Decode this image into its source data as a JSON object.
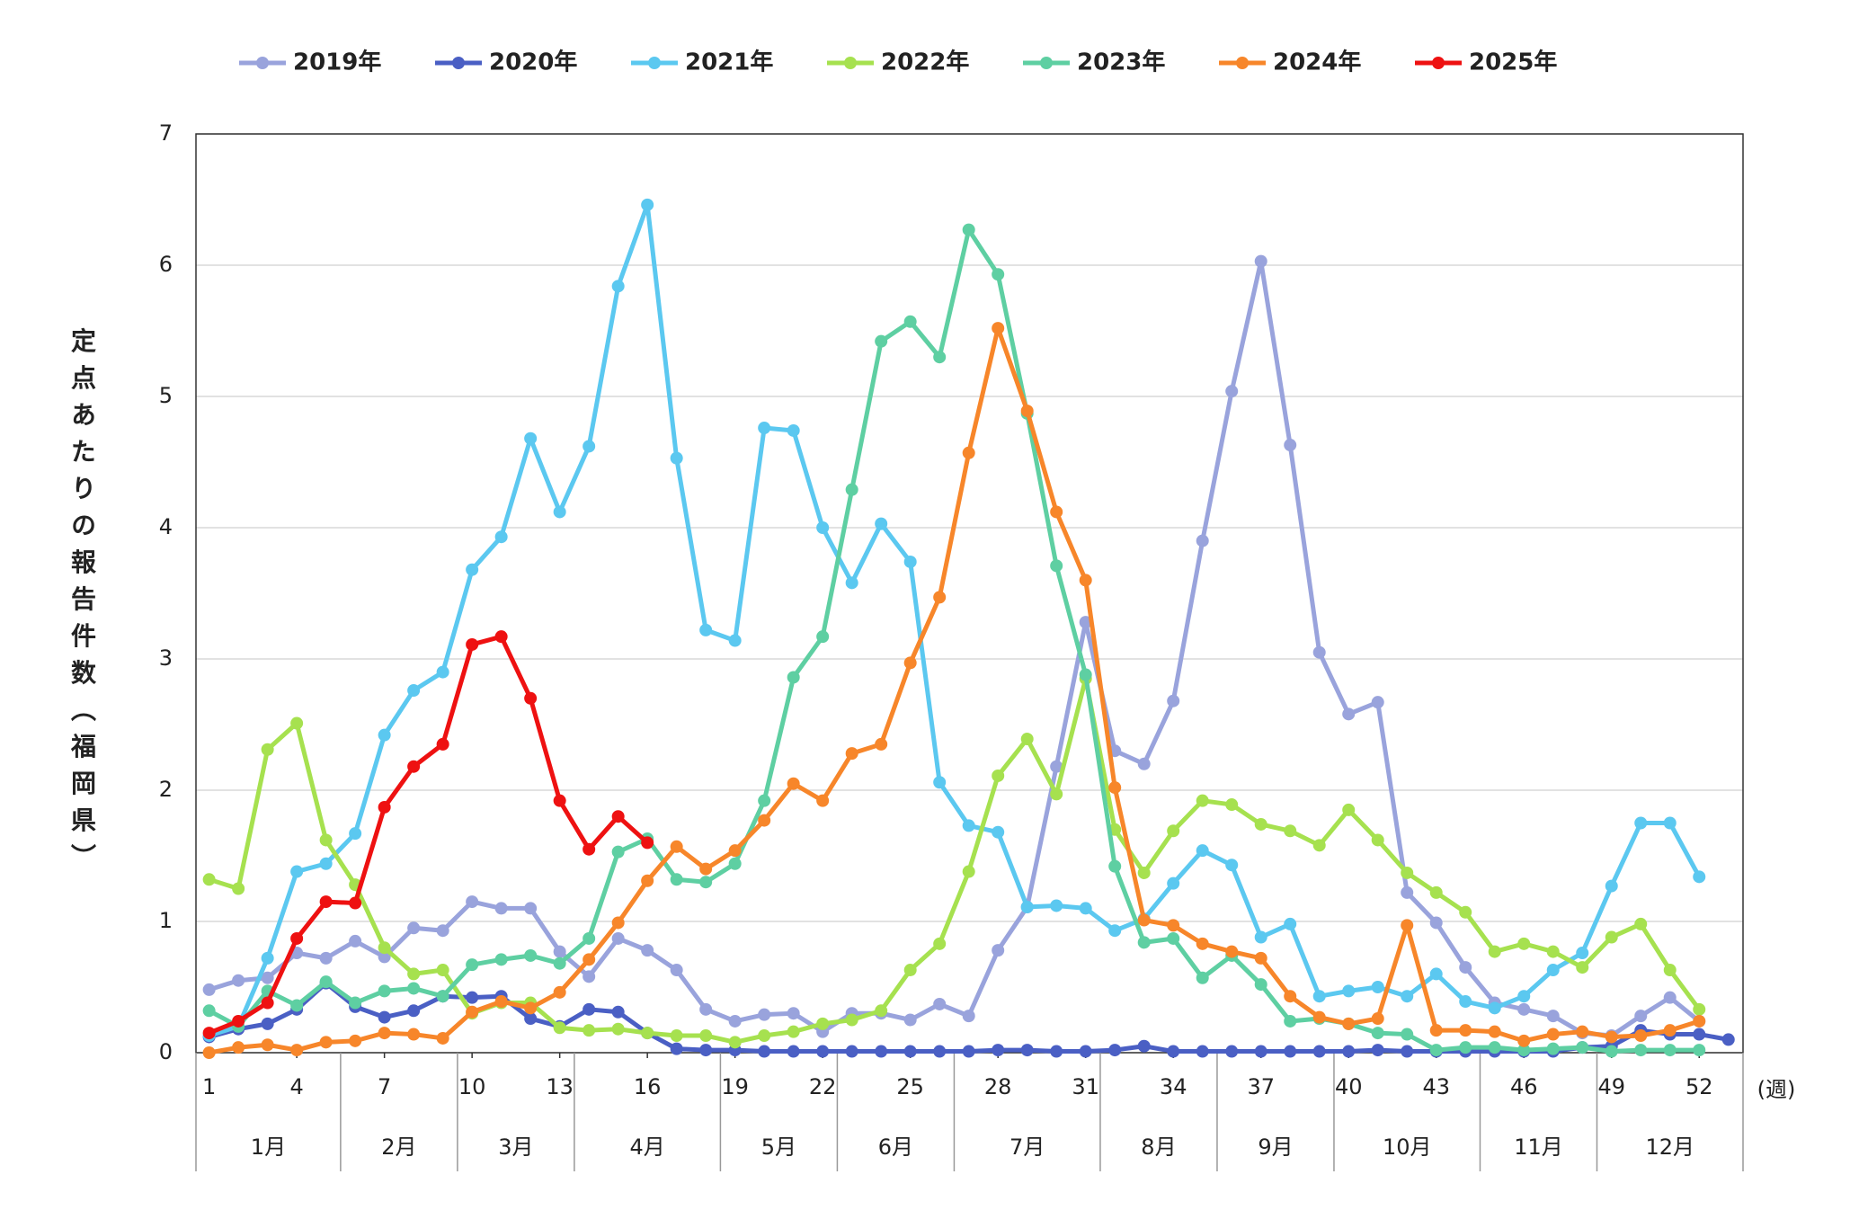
{
  "chart_data": {
    "type": "line",
    "y_label": "定点あたりの報告件数（福岡県）",
    "x_label": "(週)",
    "x": [
      1,
      2,
      3,
      4,
      5,
      6,
      7,
      8,
      9,
      10,
      11,
      12,
      13,
      14,
      15,
      16,
      17,
      18,
      19,
      20,
      21,
      22,
      23,
      24,
      25,
      26,
      27,
      28,
      29,
      30,
      31,
      32,
      33,
      34,
      35,
      36,
      37,
      38,
      39,
      40,
      41,
      42,
      43,
      44,
      45,
      46,
      47,
      48,
      49,
      50,
      51,
      52,
      53
    ],
    "xlim": [
      0.55,
      53.5
    ],
    "xticks": [
      1,
      4,
      7,
      10,
      13,
      16,
      19,
      22,
      25,
      28,
      31,
      34,
      37,
      40,
      43,
      46,
      49,
      52
    ],
    "months": [
      "1月",
      "2月",
      "3月",
      "4月",
      "5月",
      "6月",
      "7月",
      "8月",
      "9月",
      "10月",
      "11月",
      "12月"
    ],
    "ylim": [
      0,
      7
    ],
    "yticks": [
      0,
      1,
      2,
      3,
      4,
      5,
      6,
      7
    ],
    "grid": true,
    "legend": "top",
    "series": [
      {
        "name": "2019年",
        "color": "#99a3dc",
        "values": [
          0.48,
          0.55,
          0.57,
          0.76,
          0.72,
          0.85,
          0.73,
          0.95,
          0.93,
          1.15,
          1.1,
          1.1,
          0.77,
          0.58,
          0.87,
          0.78,
          0.63,
          0.33,
          0.24,
          0.29,
          0.3,
          0.16,
          0.3,
          0.3,
          0.25,
          0.37,
          0.28,
          0.78,
          1.11,
          2.18,
          3.28,
          2.3,
          2.2,
          2.68,
          3.9,
          5.04,
          6.03,
          4.63,
          3.05,
          2.58,
          2.67,
          1.22,
          0.99,
          0.65,
          0.38,
          0.33,
          0.28,
          0.15,
          0.13,
          0.28,
          0.42,
          0.24,
          null
        ]
      },
      {
        "name": "2020年",
        "color": "#4a5fc4",
        "values": [
          0.12,
          0.18,
          0.22,
          0.33,
          0.53,
          0.35,
          0.27,
          0.32,
          0.43,
          0.42,
          0.43,
          0.26,
          0.2,
          0.33,
          0.31,
          0.15,
          0.03,
          0.02,
          0.02,
          0.01,
          0.01,
          0.01,
          0.01,
          0.01,
          0.01,
          0.01,
          0.01,
          0.02,
          0.02,
          0.01,
          0.01,
          0.02,
          0.05,
          0.01,
          0.01,
          0.01,
          0.01,
          0.01,
          0.01,
          0.01,
          0.02,
          0.01,
          0.01,
          0.01,
          0.01,
          0.01,
          0.01,
          0.04,
          0.05,
          0.17,
          0.14,
          0.14,
          0.1
        ]
      },
      {
        "name": "2021年",
        "color": "#5bc8f0",
        "values": [
          0.13,
          0.2,
          0.72,
          1.38,
          1.44,
          1.67,
          2.42,
          2.76,
          2.9,
          3.68,
          3.93,
          4.68,
          4.12,
          4.62,
          5.84,
          6.46,
          4.53,
          3.22,
          3.14,
          4.76,
          4.74,
          4.0,
          3.58,
          4.03,
          3.74,
          2.06,
          1.73,
          1.68,
          1.11,
          1.12,
          1.1,
          0.93,
          1.02,
          1.29,
          1.54,
          1.43,
          0.88,
          0.98,
          0.43,
          0.47,
          0.5,
          0.43,
          0.6,
          0.39,
          0.34,
          0.43,
          0.63,
          0.76,
          1.27,
          1.75,
          1.75,
          1.34,
          null
        ]
      },
      {
        "name": "2022年",
        "color": "#a6e14f",
        "values": [
          1.32,
          1.25,
          2.31,
          2.51,
          1.62,
          1.28,
          0.8,
          0.6,
          0.63,
          0.3,
          0.38,
          0.38,
          0.19,
          0.17,
          0.18,
          0.15,
          0.13,
          0.13,
          0.08,
          0.13,
          0.16,
          0.22,
          0.25,
          0.32,
          0.63,
          0.83,
          1.38,
          2.11,
          2.39,
          1.97,
          2.85,
          1.7,
          1.37,
          1.69,
          1.92,
          1.89,
          1.74,
          1.69,
          1.58,
          1.85,
          1.62,
          1.37,
          1.22,
          1.07,
          0.77,
          0.83,
          0.77,
          0.65,
          0.88,
          0.98,
          0.63,
          0.33,
          null
        ]
      },
      {
        "name": "2023年",
        "color": "#5ecfa2",
        "values": [
          0.32,
          0.2,
          0.47,
          0.36,
          0.54,
          0.38,
          0.47,
          0.49,
          0.43,
          0.67,
          0.71,
          0.74,
          0.68,
          0.87,
          1.53,
          1.63,
          1.32,
          1.3,
          1.44,
          1.92,
          2.86,
          3.17,
          4.29,
          5.42,
          5.57,
          5.3,
          6.27,
          5.93,
          4.87,
          3.71,
          2.88,
          1.42,
          0.84,
          0.87,
          0.57,
          0.74,
          0.52,
          0.24,
          0.26,
          0.22,
          0.15,
          0.14,
          0.02,
          0.04,
          0.04,
          0.02,
          0.03,
          0.04,
          0.01,
          0.02,
          0.02,
          0.02,
          null
        ]
      },
      {
        "name": "2024年",
        "color": "#f7862a",
        "values": [
          0,
          0.04,
          0.06,
          0.02,
          0.08,
          0.09,
          0.15,
          0.14,
          0.11,
          0.31,
          0.39,
          0.34,
          0.46,
          0.71,
          0.99,
          1.31,
          1.57,
          1.4,
          1.54,
          1.77,
          2.05,
          1.92,
          2.28,
          2.35,
          2.97,
          3.47,
          4.57,
          5.52,
          4.89,
          4.12,
          3.6,
          2.02,
          1.01,
          0.97,
          0.83,
          0.77,
          0.72,
          0.43,
          0.27,
          0.22,
          0.26,
          0.97,
          0.17,
          0.17,
          0.16,
          0.09,
          0.14,
          0.16,
          0.12,
          0.13,
          0.17,
          0.24,
          null
        ]
      },
      {
        "name": "2025年",
        "color": "#ee1111",
        "values": [
          0.15,
          0.24,
          0.38,
          0.87,
          1.15,
          1.14,
          1.87,
          2.18,
          2.35,
          3.11,
          3.17,
          2.7,
          1.92,
          1.55,
          1.8,
          1.6,
          null,
          null,
          null,
          null,
          null,
          null,
          null,
          null,
          null,
          null,
          null,
          null,
          null,
          null,
          null,
          null,
          null,
          null,
          null,
          null,
          null,
          null,
          null,
          null,
          null,
          null,
          null,
          null,
          null,
          null,
          null,
          null,
          null,
          null,
          null,
          null,
          null
        ]
      }
    ]
  }
}
